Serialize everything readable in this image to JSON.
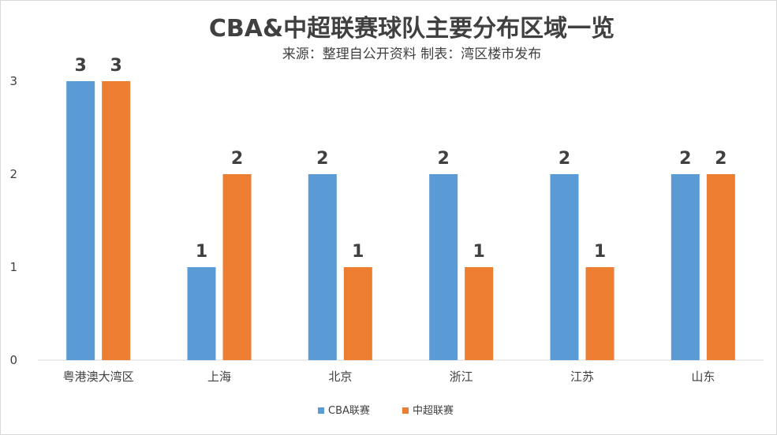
{
  "chart_data": {
    "type": "bar",
    "title": "CBA&中超联赛球队主要分布区域一览",
    "subtitle": "来源：整理自公开资料  制表：湾区楼市发布",
    "categories": [
      "粤港澳大湾区",
      "上海",
      "北京",
      "浙江",
      "江苏",
      "山东"
    ],
    "series": [
      {
        "name": "CBA联赛",
        "values": [
          3,
          1,
          2,
          2,
          2,
          2
        ],
        "color": "#5b9bd5"
      },
      {
        "name": "中超联赛",
        "values": [
          3,
          2,
          1,
          1,
          1,
          2
        ],
        "color": "#ed7d31"
      }
    ],
    "yticks": [
      "0",
      "1",
      "2",
      "3"
    ],
    "ylim": [
      0,
      3
    ],
    "xlabel": "",
    "ylabel": "",
    "grid": false,
    "legend_position": "bottom",
    "data_labels": true
  }
}
